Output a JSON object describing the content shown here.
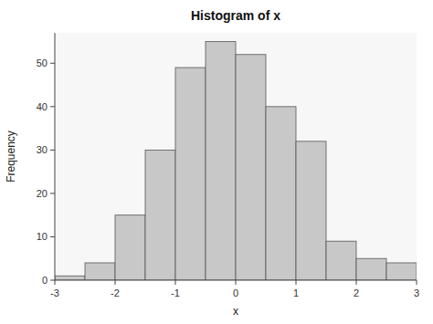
{
  "chart_data": {
    "type": "histogram",
    "title": "Histogram of x",
    "xlabel": "x",
    "ylabel": "Frequency",
    "bins": [
      -3.0,
      -2.5,
      -2.0,
      -1.5,
      -1.0,
      -0.5,
      0.0,
      0.5,
      1.0,
      1.5,
      2.0,
      2.5,
      3.0
    ],
    "values": [
      1,
      4,
      15,
      30,
      49,
      55,
      52,
      40,
      32,
      9,
      5,
      4
    ],
    "color": "#c8c8c8",
    "xlim": [
      -3.0,
      3.0
    ],
    "ylim": [
      0,
      57
    ],
    "xticks": [
      -3,
      -2,
      -1,
      0,
      1,
      2,
      3
    ],
    "yticks": [
      0,
      10,
      20,
      30,
      40,
      50
    ],
    "grid": false
  }
}
